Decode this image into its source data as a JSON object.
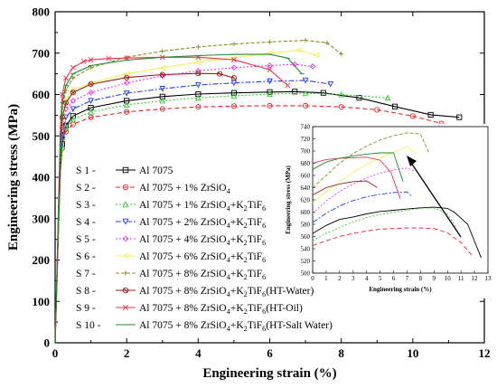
{
  "chart_data": [
    {
      "type": "line",
      "xlabel": "Engineering strain (%)",
      "ylabel": "Engineering stress  (MPa)",
      "xlim": [
        0,
        12
      ],
      "ylim": [
        0,
        800
      ],
      "xticks": [
        0,
        2,
        4,
        6,
        8,
        10,
        12
      ],
      "yticks": [
        0,
        100,
        200,
        300,
        400,
        500,
        600,
        700,
        800
      ],
      "legend_position": "center-left",
      "series": [
        {
          "name": "S 1 -",
          "name_suffix": "Al 7075",
          "color": "#000000",
          "marker": "square",
          "dash": "solid",
          "x": [
            0,
            0.05,
            0.1,
            0.15,
            0.2,
            0.3,
            0.5,
            1,
            2,
            3,
            4,
            5,
            6,
            6.7,
            7.5,
            8.5,
            9.5,
            10.5,
            11.3
          ],
          "y": [
            0,
            150,
            300,
            420,
            480,
            525,
            548,
            568,
            585,
            595,
            601,
            604,
            606,
            607,
            604,
            592,
            571,
            551,
            545
          ]
        },
        {
          "name": "S 2 -",
          "name_suffix": "Al 7075 + 1% ZrSiO",
          "name_sub": "4",
          "color": "#e8232a",
          "marker": "circle",
          "dash": "5,3",
          "x": [
            0,
            0.05,
            0.1,
            0.15,
            0.2,
            0.3,
            0.5,
            1,
            2,
            3,
            4,
            5,
            6,
            7,
            8,
            9,
            10,
            10.8
          ],
          "y": [
            0,
            140,
            290,
            410,
            470,
            510,
            528,
            545,
            558,
            565,
            570,
            572,
            573,
            573,
            570,
            563,
            548,
            530
          ]
        },
        {
          "name": "S 3 -",
          "name_suffix": "Al 7075 + 1% ZrSiO",
          "name_sub": "4",
          "name_mid": "+K",
          "name_sub2": "2",
          "name_tail": "TiF",
          "name_sub3": "6",
          "color": "#33cc33",
          "marker": "triangle-up",
          "dash": "2,2",
          "x": [
            0,
            0.05,
            0.1,
            0.15,
            0.2,
            0.3,
            0.5,
            1,
            2,
            3,
            4,
            5,
            6,
            7,
            8,
            9.3
          ],
          "y": [
            0,
            145,
            295,
            415,
            475,
            520,
            540,
            558,
            575,
            585,
            592,
            597,
            601,
            603,
            600,
            592
          ]
        },
        {
          "name": "S 4 -",
          "name_suffix": "Al 7075 + 2% ZrSiO",
          "name_sub": "4",
          "name_mid": "+K",
          "name_sub2": "2",
          "name_tail": "TiF",
          "name_sub3": "6",
          "color": "#2a3cf0",
          "marker": "triangle-down",
          "dash": "6,2,2,2",
          "x": [
            0,
            0.05,
            0.1,
            0.15,
            0.2,
            0.3,
            0.5,
            1,
            2,
            3,
            4,
            5,
            6,
            7,
            7.7
          ],
          "y": [
            0,
            150,
            310,
            440,
            500,
            545,
            565,
            585,
            603,
            614,
            623,
            628,
            632,
            634,
            625
          ]
        },
        {
          "name": "S 5 -",
          "name_suffix": "Al 7075 + 4% ZrSiO",
          "name_sub": "4",
          "name_mid": "+K",
          "name_sub2": "2",
          "name_tail": "TiF",
          "name_sub3": "6",
          "color": "#ee33ee",
          "marker": "diamond",
          "dash": "2,2",
          "x": [
            0,
            0.05,
            0.1,
            0.15,
            0.2,
            0.3,
            0.5,
            1,
            2,
            3,
            4,
            5,
            6,
            6.7,
            7.2
          ],
          "y": [
            0,
            155,
            320,
            455,
            520,
            565,
            585,
            605,
            628,
            645,
            657,
            665,
            670,
            673,
            668
          ]
        },
        {
          "name": "S 6 -",
          "name_suffix": "Al 7075 + 6% ZrSiO",
          "name_sub": "4",
          "name_mid": "+K",
          "name_sub2": "2",
          "name_tail": "TiF",
          "name_sub3": "6",
          "color": "#f2f25a",
          "marker": "triangle-left",
          "dash": "solid",
          "x": [
            0,
            0.05,
            0.1,
            0.15,
            0.2,
            0.3,
            0.5,
            1,
            2,
            3,
            4,
            5,
            6,
            6.8,
            7.3
          ],
          "y": [
            0,
            160,
            330,
            470,
            540,
            590,
            612,
            628,
            650,
            665,
            678,
            688,
            700,
            707,
            695
          ]
        },
        {
          "name": "S 7 -",
          "name_suffix": "Al 7075 + 8% ZrSiO",
          "name_sub": "4",
          "name_mid": "+K",
          "name_sub2": "2",
          "name_tail": "TiF",
          "name_sub3": "6",
          "color": "#8c8c1e",
          "marker": "plus",
          "dash": "4,2",
          "x": [
            0,
            0.05,
            0.1,
            0.15,
            0.2,
            0.3,
            0.5,
            1,
            2,
            3,
            4,
            5,
            6,
            7,
            7.6,
            8
          ],
          "y": [
            0,
            165,
            340,
            490,
            570,
            610,
            640,
            665,
            690,
            705,
            715,
            722,
            727,
            731,
            725,
            698
          ]
        },
        {
          "name": "S 8 -",
          "name_suffix": "Al 7075 + 8% ZrSiO",
          "name_sub": "4",
          "name_mid": "+K",
          "name_sub2": "2",
          "name_tail": "TiF",
          "name_sub3": "6",
          "name_extra": "(HT-Water)",
          "color": "#9b1c1c",
          "marker": "circle-x",
          "dash": "solid",
          "x": [
            0,
            0.05,
            0.1,
            0.15,
            0.2,
            0.3,
            0.5,
            1,
            2,
            3,
            4,
            4.6,
            5
          ],
          "y": [
            0,
            160,
            330,
            465,
            545,
            580,
            605,
            625,
            641,
            648,
            651,
            650,
            640
          ]
        },
        {
          "name": "S 9 -",
          "name_suffix": "Al 7075 + 8% ZrSiO",
          "name_sub": "4",
          "name_mid": "+K",
          "name_sub2": "2",
          "name_tail": "TiF",
          "name_sub3": "6",
          "name_extra": "(HT-Oil)",
          "color": "#f0314f",
          "marker": "x",
          "dash": "solid",
          "x": [
            0,
            0.05,
            0.1,
            0.15,
            0.2,
            0.3,
            0.5,
            0.8,
            1,
            1.5,
            2,
            3,
            4,
            5,
            6,
            6.5
          ],
          "y": [
            0,
            170,
            360,
            520,
            600,
            640,
            665,
            680,
            684,
            687,
            688,
            690,
            690,
            684,
            660,
            622
          ]
        },
        {
          "name": "S 10 -",
          "name_suffix": "Al 7075 + 8% ZrSiO",
          "name_sub": "4",
          "name_mid": "+K",
          "name_sub2": "2",
          "name_tail": "TiF",
          "name_sub3": "6",
          "name_extra": "(HT-Salt Water)",
          "color": "#1f8a2a",
          "marker": "dash",
          "dash": "solid",
          "x": [
            0,
            0.05,
            0.1,
            0.15,
            0.2,
            0.3,
            0.5,
            1,
            2,
            3,
            4,
            5,
            6,
            6.5,
            6.9
          ],
          "y": [
            0,
            165,
            350,
            500,
            580,
            622,
            650,
            670,
            683,
            690,
            694,
            697,
            697,
            688,
            650
          ]
        }
      ]
    },
    {
      "type": "line",
      "role": "inset",
      "xlabel": "Engineering strain (%)",
      "ylabel": "Engineering stress  (MPa)",
      "xlim": [
        0,
        13
      ],
      "ylim": [
        500,
        740
      ],
      "xticks": [
        0,
        1,
        2,
        3,
        4,
        5,
        6,
        7,
        8,
        9,
        10,
        11,
        12,
        13
      ],
      "yticks": [
        500,
        520,
        540,
        560,
        580,
        600,
        620,
        640,
        660,
        680,
        700,
        720,
        740
      ],
      "series_ref": "same as main chart",
      "series": [
        {
          "color": "#000000",
          "dash": "solid",
          "x": [
            0,
            1,
            2,
            3,
            4,
            5,
            6,
            7,
            8,
            9,
            10,
            10.5,
            11.5,
            12.5
          ],
          "y": [
            565,
            578,
            588,
            592,
            597,
            601,
            603,
            605,
            607,
            608,
            606,
            600,
            580,
            525
          ]
        },
        {
          "color": "#e8232a",
          "dash": "5,3",
          "x": [
            0,
            1,
            2,
            3,
            4,
            5,
            6,
            7,
            8,
            9,
            10,
            11,
            11.9
          ],
          "y": [
            545,
            553,
            560,
            565,
            569,
            572,
            573,
            574,
            574,
            573,
            566,
            550,
            527
          ]
        },
        {
          "color": "#33cc33",
          "dash": "2,2",
          "x": [
            0,
            1,
            2,
            3,
            4,
            5,
            6,
            7,
            8,
            9,
            10,
            10.7
          ],
          "y": [
            553,
            565,
            575,
            584,
            591,
            596,
            600,
            603,
            606,
            607,
            597,
            573
          ]
        },
        {
          "color": "#2a3cf0",
          "dash": "6,2,2,2",
          "x": [
            0,
            1,
            2,
            3,
            4,
            5,
            6,
            7,
            7.4
          ],
          "y": [
            583,
            598,
            610,
            619,
            625,
            629,
            632,
            633,
            625
          ]
        },
        {
          "color": "#ee33ee",
          "dash": "2,2",
          "x": [
            0,
            1,
            2,
            3,
            4,
            5,
            6,
            7,
            7.5
          ],
          "y": [
            598,
            618,
            634,
            646,
            656,
            664,
            669,
            672,
            668
          ]
        },
        {
          "color": "#f2f25a",
          "dash": "solid",
          "x": [
            0,
            1,
            2,
            3,
            4,
            5,
            6,
            7,
            7.7
          ],
          "y": [
            615,
            633,
            650,
            665,
            678,
            689,
            698,
            707,
            695
          ]
        },
        {
          "color": "#8c8c1e",
          "dash": "4,2",
          "x": [
            0,
            1,
            2,
            3,
            4,
            5,
            6,
            7,
            8,
            8.6
          ],
          "y": [
            640,
            660,
            680,
            696,
            708,
            718,
            725,
            730,
            728,
            698
          ]
        },
        {
          "color": "#9b1c1c",
          "dash": "solid",
          "x": [
            0,
            1,
            2,
            3,
            4,
            4.8
          ],
          "y": [
            628,
            640,
            646,
            650,
            651,
            640
          ]
        },
        {
          "color": "#f0314f",
          "dash": "solid",
          "x": [
            0,
            1,
            2,
            3,
            4,
            5,
            5.8,
            6.5
          ],
          "y": [
            680,
            686,
            688,
            689,
            690,
            685,
            665,
            622
          ]
        },
        {
          "color": "#1f8a2a",
          "dash": "solid",
          "x": [
            0,
            1,
            2,
            3,
            4,
            5,
            6,
            6.7
          ],
          "y": [
            670,
            682,
            688,
            692,
            695,
            697,
            697,
            650
          ]
        }
      ]
    }
  ]
}
